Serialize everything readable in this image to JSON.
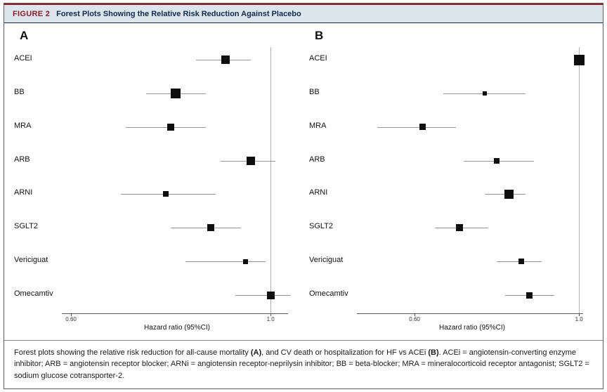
{
  "header": {
    "figure_label": "FIGURE 2",
    "title": "Forest Plots Showing the Relative Risk Reduction Against Placebo"
  },
  "caption": {
    "segments": [
      {
        "text": "Forest plots showing the relative risk reduction for all-cause mortality ",
        "bold": false
      },
      {
        "text": "(A)",
        "bold": true
      },
      {
        "text": ", and CV death or hospitalization for HF vs ACEi ",
        "bold": false
      },
      {
        "text": "(B)",
        "bold": true
      },
      {
        "text": ". ACEi = angiotensin-converting enzyme inhibitor; ARB = angiotensin receptor blocker; ARNi = angiotensin receptor-neprilysin inhibitor; BB = beta-blocker; MRA = mineralocorticoid receptor antagonist; SGLT2 = sodium glucose cotransporter-2.",
        "bold": false
      }
    ]
  },
  "colors": {
    "header_bg": "#dce5ee",
    "figure_label": "#8c1d21",
    "title": "#12294d",
    "marker": "#0f0f0f",
    "ci_line": "#969696",
    "ref_line": "#b3b3b3"
  },
  "chart_data": [
    {
      "type": "forest",
      "panel_label": "A",
      "xlabel": "Hazard ratio (95%CI)",
      "x_ticks": [
        0.6,
        1.0
      ],
      "x_tick_labels": [
        "0.60",
        "1.0"
      ],
      "xlim": [
        0.59,
        1.035
      ],
      "ref_line": 1.0,
      "grid": false,
      "rows": [
        {
          "label": "ACEI",
          "hr": 0.91,
          "lo": 0.85,
          "hi": 0.96,
          "marker_size": 12
        },
        {
          "label": "BB",
          "hr": 0.81,
          "lo": 0.75,
          "hi": 0.87,
          "marker_size": 14
        },
        {
          "label": "MRA",
          "hr": 0.8,
          "lo": 0.71,
          "hi": 0.87,
          "marker_size": 10
        },
        {
          "label": "ARB",
          "hr": 0.96,
          "lo": 0.9,
          "hi": 1.01,
          "marker_size": 12
        },
        {
          "label": "ARNI",
          "hr": 0.79,
          "lo": 0.7,
          "hi": 0.89,
          "marker_size": 8
        },
        {
          "label": "SGLT2",
          "hr": 0.88,
          "lo": 0.8,
          "hi": 0.94,
          "marker_size": 10
        },
        {
          "label": "Vericiguat",
          "hr": 0.95,
          "lo": 0.83,
          "hi": 0.99,
          "marker_size": 7
        },
        {
          "label": "Omecamtiv",
          "hr": 1.0,
          "lo": 0.93,
          "hi": 1.04,
          "marker_size": 11
        }
      ]
    },
    {
      "type": "forest",
      "panel_label": "B",
      "xlabel": "Hazard ratio (95%CI)",
      "x_ticks": [
        0.6,
        1.0
      ],
      "x_tick_labels": [
        "0.60",
        "1.0"
      ],
      "xlim": [
        0.47,
        1.01
      ],
      "ref_line": 1.0,
      "grid": false,
      "rows": [
        {
          "label": "ACEI",
          "hr": 1.0,
          "lo": 1.0,
          "hi": 1.0,
          "marker_size": 15
        },
        {
          "label": "BB",
          "hr": 0.77,
          "lo": 0.67,
          "hi": 0.87,
          "marker_size": 6
        },
        {
          "label": "MRA",
          "hr": 0.62,
          "lo": 0.51,
          "hi": 0.7,
          "marker_size": 9
        },
        {
          "label": "ARB",
          "hr": 0.8,
          "lo": 0.72,
          "hi": 0.89,
          "marker_size": 8
        },
        {
          "label": "ARNI",
          "hr": 0.83,
          "lo": 0.77,
          "hi": 0.87,
          "marker_size": 13
        },
        {
          "label": "SGLT2",
          "hr": 0.71,
          "lo": 0.65,
          "hi": 0.78,
          "marker_size": 10
        },
        {
          "label": "Vericiguat",
          "hr": 0.86,
          "lo": 0.8,
          "hi": 0.91,
          "marker_size": 8
        },
        {
          "label": "Omecamtiv",
          "hr": 0.88,
          "lo": 0.82,
          "hi": 0.94,
          "marker_size": 9
        }
      ]
    }
  ]
}
